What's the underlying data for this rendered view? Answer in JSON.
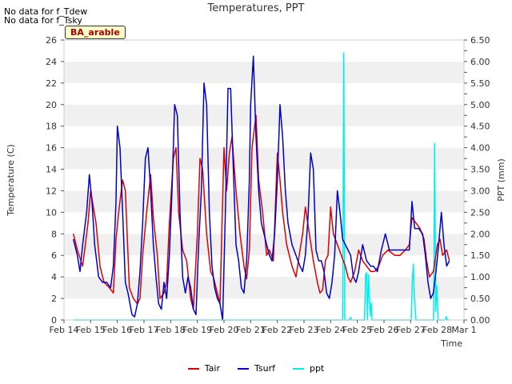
{
  "notes": [
    "No data for f_Tdew",
    "No data for f_Tsky"
  ],
  "badge": "BA_arable",
  "chart_data": {
    "type": "line",
    "title": "Temperatures, PPT",
    "xlabel": "Time",
    "ylabel": "Temperature (C)",
    "y2label": "PPT (mm)",
    "xlim": [
      14,
      29
    ],
    "ylim": [
      0,
      26
    ],
    "y2lim": [
      0,
      6.5
    ],
    "x_ticks": [
      14,
      15,
      16,
      17,
      18,
      19,
      20,
      21,
      22,
      23,
      24,
      25,
      26,
      27,
      28,
      29
    ],
    "x_tick_labels": [
      "Feb 14",
      "Feb 15",
      "Feb 16",
      "Feb 17",
      "Feb 18",
      "Feb 19",
      "Feb 20",
      "Feb 21",
      "Feb 22",
      "Feb 23",
      "Feb 24",
      "Feb 25",
      "Feb 26",
      "Feb 27",
      "Feb 28",
      "Mar 1"
    ],
    "y_ticks": [
      0,
      2,
      4,
      6,
      8,
      10,
      12,
      14,
      16,
      18,
      20,
      22,
      24,
      26
    ],
    "y2_ticks": [
      0.0,
      0.25,
      0.5,
      0.75,
      1.0,
      1.25,
      1.5,
      1.75,
      2.0,
      2.25,
      2.5,
      2.75,
      3.0,
      3.25,
      3.5,
      3.75,
      4.0,
      4.25,
      4.5,
      4.75,
      5.0,
      5.25,
      5.5,
      5.75,
      6.0,
      6.25,
      6.5
    ],
    "y2_tick_labels": [
      "0.00",
      "0.25",
      "0.50",
      "0.75",
      "1.00",
      "1.25",
      "1.50",
      "1.75",
      "2.00",
      "2.25",
      "2.50",
      "2.75",
      "3.00",
      "3.25",
      "3.50",
      "3.75",
      "4.00",
      "4.25",
      "4.50",
      "4.75",
      "5.00",
      "5.25",
      "5.50",
      "5.75",
      "6.00",
      "6.25",
      "6.50"
    ],
    "grid": "horizontal bands",
    "legend": "bottom-center",
    "series": [
      {
        "name": "Tair",
        "axis": "left",
        "color": "#dd0000",
        "x": [
          14.35,
          14.5,
          14.7,
          14.9,
          15.0,
          15.2,
          15.35,
          15.5,
          15.7,
          15.85,
          15.95,
          16.05,
          16.2,
          16.3,
          16.45,
          16.6,
          16.75,
          16.85,
          16.95,
          17.1,
          17.25,
          17.35,
          17.5,
          17.6,
          17.75,
          17.85,
          17.95,
          18.1,
          18.2,
          18.3,
          18.45,
          18.6,
          18.75,
          18.85,
          19.0,
          19.1,
          19.2,
          19.35,
          19.5,
          19.6,
          19.7,
          19.85,
          20.0,
          20.1,
          20.2,
          20.3,
          20.45,
          20.6,
          20.75,
          20.85,
          20.95,
          21.05,
          21.2,
          21.3,
          21.45,
          21.6,
          21.7,
          21.85,
          22.0,
          22.1,
          22.2,
          22.35,
          22.55,
          22.7,
          22.85,
          22.95,
          23.05,
          23.2,
          23.35,
          23.5,
          23.6,
          23.7,
          23.8,
          23.9,
          24.0,
          24.1,
          24.25,
          24.4,
          24.55,
          24.65,
          24.75,
          24.9,
          25.05,
          25.2,
          25.35,
          25.5,
          25.65,
          25.8,
          25.95,
          26.15,
          26.4,
          26.6,
          26.8,
          26.95,
          27.05,
          27.2,
          27.35,
          27.5,
          27.6,
          27.7,
          27.85,
          28.0,
          28.1,
          28.2,
          28.35,
          28.45
        ],
        "y": [
          8.0,
          6.5,
          5.0,
          9.0,
          12.0,
          9.0,
          5.0,
          3.5,
          3.0,
          2.5,
          7.5,
          10.0,
          13.0,
          12.0,
          3.0,
          2.0,
          1.5,
          2.0,
          6.0,
          10.0,
          13.5,
          9.5,
          6.0,
          2.0,
          2.5,
          3.5,
          9.0,
          15.0,
          16.0,
          10.0,
          6.5,
          5.5,
          2.0,
          1.0,
          8.0,
          15.0,
          14.0,
          8.0,
          4.5,
          4.0,
          3.0,
          1.5,
          16.0,
          12.0,
          15.5,
          17.0,
          12.0,
          8.0,
          5.0,
          3.8,
          6.5,
          16.0,
          19.0,
          13.0,
          10.0,
          6.0,
          6.5,
          5.5,
          15.5,
          13.0,
          10.0,
          7.0,
          5.0,
          4.0,
          6.5,
          8.0,
          10.5,
          8.0,
          5.5,
          3.5,
          2.5,
          2.8,
          5.5,
          6.0,
          10.5,
          8.0,
          7.0,
          6.0,
          5.0,
          4.0,
          3.5,
          4.5,
          6.5,
          5.5,
          5.0,
          4.5,
          4.5,
          5.0,
          6.0,
          6.5,
          6.0,
          6.0,
          6.5,
          7.0,
          9.5,
          9.0,
          8.5,
          7.5,
          5.5,
          4.0,
          4.5,
          7.0,
          7.5,
          6.0,
          6.5,
          5.5
        ]
      },
      {
        "name": "Tsurf",
        "axis": "left",
        "color": "#0000cc",
        "x": [
          14.35,
          14.5,
          14.6,
          14.7,
          14.85,
          14.95,
          15.05,
          15.15,
          15.3,
          15.45,
          15.6,
          15.75,
          15.85,
          15.95,
          16.0,
          16.1,
          16.2,
          16.3,
          16.4,
          16.55,
          16.65,
          16.75,
          16.85,
          16.95,
          17.05,
          17.15,
          17.25,
          17.35,
          17.45,
          17.55,
          17.65,
          17.75,
          17.85,
          17.95,
          18.05,
          18.15,
          18.25,
          18.35,
          18.45,
          18.55,
          18.65,
          18.75,
          18.85,
          18.95,
          19.05,
          19.15,
          19.25,
          19.35,
          19.45,
          19.55,
          19.65,
          19.75,
          19.85,
          19.95,
          20.05,
          20.15,
          20.25,
          20.35,
          20.45,
          20.55,
          20.65,
          20.75,
          20.85,
          20.95,
          21.0,
          21.1,
          21.2,
          21.3,
          21.4,
          21.5,
          21.6,
          21.7,
          21.8,
          21.9,
          22.0,
          22.1,
          22.2,
          22.3,
          22.4,
          22.55,
          22.7,
          22.85,
          22.95,
          23.05,
          23.15,
          23.25,
          23.35,
          23.45,
          23.55,
          23.65,
          23.75,
          23.85,
          23.95,
          24.05,
          24.15,
          24.25,
          24.35,
          24.45,
          24.55,
          24.65,
          24.75,
          24.85,
          24.95,
          25.05,
          25.2,
          25.35,
          25.5,
          25.6,
          25.75,
          25.9,
          26.05,
          26.2,
          26.4,
          26.6,
          26.8,
          26.95,
          27.05,
          27.15,
          27.3,
          27.45,
          27.55,
          27.65,
          27.75,
          27.85,
          27.95,
          28.05,
          28.15,
          28.25,
          28.35,
          28.45
        ],
        "y": [
          7.5,
          6.0,
          4.5,
          7.0,
          10.0,
          13.5,
          11.0,
          7.0,
          4.0,
          3.5,
          3.5,
          3.0,
          5.0,
          11.0,
          18.0,
          16.0,
          10.0,
          3.5,
          2.5,
          0.5,
          0.3,
          1.5,
          4.5,
          9.0,
          15.0,
          16.0,
          12.0,
          7.0,
          4.0,
          1.5,
          1.0,
          3.5,
          2.0,
          6.0,
          12.0,
          20.0,
          19.0,
          10.0,
          4.0,
          2.5,
          4.0,
          3.0,
          1.0,
          0.5,
          7.0,
          12.0,
          22.0,
          20.0,
          10.0,
          5.0,
          3.0,
          2.0,
          1.5,
          0.0,
          10.0,
          21.5,
          21.5,
          14.0,
          7.0,
          5.5,
          3.0,
          2.5,
          5.5,
          13.0,
          20.0,
          24.5,
          17.0,
          12.0,
          9.0,
          8.0,
          7.0,
          6.0,
          5.5,
          8.0,
          13.0,
          20.0,
          17.0,
          12.0,
          9.0,
          7.0,
          6.0,
          5.0,
          4.5,
          6.0,
          9.5,
          15.5,
          14.0,
          6.5,
          5.5,
          5.5,
          4.5,
          2.5,
          2.0,
          3.5,
          6.0,
          12.0,
          10.0,
          7.5,
          7.0,
          6.5,
          6.0,
          4.0,
          3.5,
          4.5,
          7.0,
          5.5,
          5.0,
          5.0,
          4.5,
          6.5,
          8.0,
          6.5,
          6.5,
          6.5,
          6.5,
          6.5,
          11.0,
          8.5,
          8.5,
          8.0,
          6.0,
          3.5,
          2.0,
          2.5,
          4.5,
          7.0,
          10.0,
          7.0,
          5.0,
          5.5
        ]
      },
      {
        "name": "ppt",
        "axis": "right",
        "color": "#00eeee",
        "x": [
          14.35,
          24.38,
          24.45,
          24.49,
          24.53,
          24.6,
          24.7,
          24.72,
          24.75,
          24.78,
          24.85,
          25.2,
          25.27,
          25.31,
          25.35,
          25.38,
          25.42,
          25.46,
          25.5,
          25.52,
          25.55,
          26.95,
          27.02,
          27.06,
          27.1,
          27.14,
          27.2,
          27.8,
          27.86,
          27.9,
          27.94,
          27.98,
          28.03,
          28.3,
          28.33,
          28.36,
          28.4,
          28.45
        ],
        "y": [
          0,
          0,
          0,
          6.2,
          0,
          0,
          0,
          0.03,
          0.06,
          0,
          0,
          0,
          0,
          1.05,
          1.1,
          0,
          1.05,
          0.4,
          0.1,
          0.4,
          0,
          0,
          0,
          0.9,
          1.3,
          0.5,
          0,
          0,
          0,
          4.1,
          0.2,
          0.8,
          0,
          0,
          0.08,
          0.03,
          0,
          0
        ]
      }
    ]
  }
}
